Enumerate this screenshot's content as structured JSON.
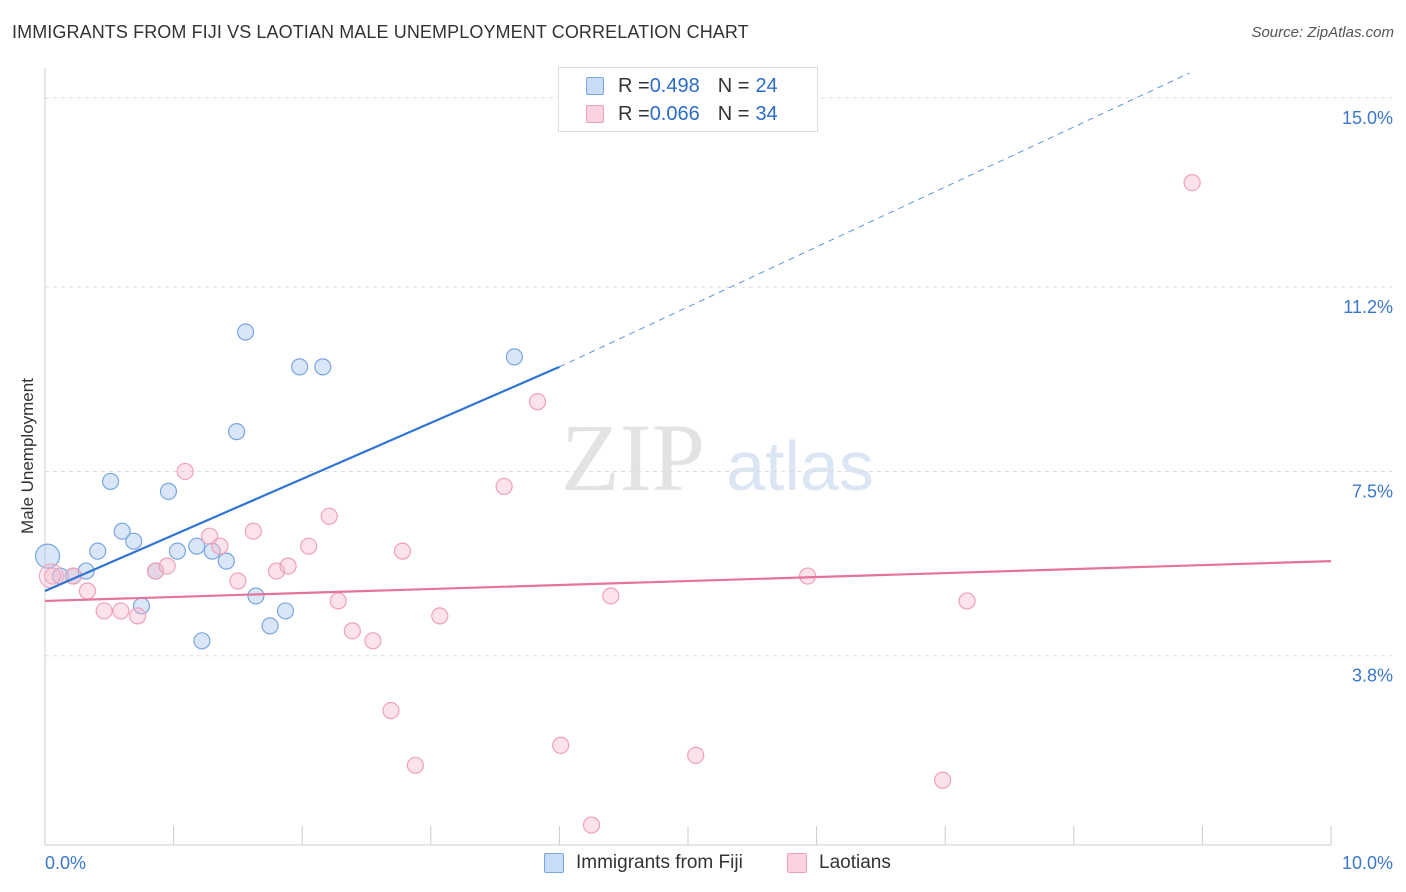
{
  "title": "IMMIGRANTS FROM FIJI VS LAOTIAN MALE UNEMPLOYMENT CORRELATION CHART",
  "source": "Source: ZipAtlas.com",
  "watermark": {
    "zip": "ZIP",
    "atlas": "atlas"
  },
  "legend_top": {
    "rows": [
      {
        "r_label": "R = ",
        "r_value": "0.498",
        "n_label": "N = ",
        "n_value": "24",
        "color": "#a9c8f0"
      },
      {
        "r_label": "R = ",
        "r_value": "0.066",
        "n_label": "N = ",
        "n_value": "34",
        "color": "#f7b8cb"
      }
    ]
  },
  "legend_bottom": [
    {
      "label": "Immigrants from Fiji",
      "color": "#a9c8f0"
    },
    {
      "label": "Laotians",
      "color": "#f7b8cb"
    }
  ],
  "chart_data": {
    "type": "scatter",
    "title": "IMMIGRANTS FROM FIJI VS LAOTIAN MALE UNEMPLOYMENT CORRELATION CHART",
    "xlabel": "",
    "ylabel": "Male Unemployment",
    "xlim": [
      0,
      10
    ],
    "ylim": [
      0.0,
      15.4
    ],
    "x_tick_labels": [
      "0.0%",
      "10.0%"
    ],
    "y_ticks": [
      3.8,
      7.5,
      11.2,
      15.0
    ],
    "y_tick_labels": [
      "3.8%",
      "7.5%",
      "11.2%",
      "15.0%"
    ],
    "grid": true,
    "legend_position": "top-center",
    "series": [
      {
        "name": "Immigrants from Fiji",
        "color": "#a9c8f0",
        "line_color": "#2e74d0",
        "trend": {
          "x0": 0.0,
          "y0": 5.1,
          "x1": 4.0,
          "y1": 9.6,
          "dash_to_x": 8.9,
          "dash_to_y": 15.5
        },
        "points": [
          [
            0.02,
            5.8
          ],
          [
            0.12,
            5.4
          ],
          [
            0.22,
            5.4
          ],
          [
            0.32,
            5.5
          ],
          [
            0.41,
            5.9
          ],
          [
            0.51,
            7.3
          ],
          [
            0.6,
            6.3
          ],
          [
            0.69,
            6.1
          ],
          [
            0.75,
            4.8
          ],
          [
            0.86,
            5.5
          ],
          [
            0.96,
            7.1
          ],
          [
            1.03,
            5.9
          ],
          [
            1.18,
            6.0
          ],
          [
            1.22,
            4.1
          ],
          [
            1.3,
            5.9
          ],
          [
            1.41,
            5.7
          ],
          [
            1.49,
            8.3
          ],
          [
            1.56,
            10.3
          ],
          [
            1.64,
            5.0
          ],
          [
            1.75,
            4.4
          ],
          [
            1.87,
            4.7
          ],
          [
            1.98,
            9.6
          ],
          [
            2.16,
            9.6
          ],
          [
            3.65,
            9.8
          ]
        ]
      },
      {
        "name": "Laotians",
        "color": "#f7b8cb",
        "line_color": "#e5739b",
        "trend": {
          "x0": 0.0,
          "y0": 4.9,
          "x1": 10.0,
          "y1": 5.7
        },
        "points": [
          [
            0.06,
            5.4
          ],
          [
            0.22,
            5.4
          ],
          [
            0.33,
            5.1
          ],
          [
            0.46,
            4.7
          ],
          [
            0.59,
            4.7
          ],
          [
            0.72,
            4.6
          ],
          [
            0.86,
            5.5
          ],
          [
            0.95,
            5.6
          ],
          [
            1.09,
            7.5
          ],
          [
            1.28,
            6.2
          ],
          [
            1.36,
            6.0
          ],
          [
            1.5,
            5.3
          ],
          [
            1.62,
            6.3
          ],
          [
            1.8,
            5.5
          ],
          [
            1.89,
            5.6
          ],
          [
            2.05,
            6.0
          ],
          [
            2.21,
            6.6
          ],
          [
            2.28,
            4.9
          ],
          [
            2.39,
            4.3
          ],
          [
            2.55,
            4.1
          ],
          [
            2.69,
            2.7
          ],
          [
            2.78,
            5.9
          ],
          [
            2.88,
            1.6
          ],
          [
            3.07,
            4.6
          ],
          [
            3.57,
            7.2
          ],
          [
            3.83,
            8.9
          ],
          [
            4.01,
            2.0
          ],
          [
            4.25,
            0.4
          ],
          [
            4.4,
            5.0
          ],
          [
            5.06,
            1.8
          ],
          [
            5.93,
            5.4
          ],
          [
            6.98,
            1.3
          ],
          [
            7.17,
            4.9
          ],
          [
            8.92,
            13.3
          ]
        ]
      }
    ]
  }
}
